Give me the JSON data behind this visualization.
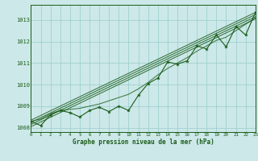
{
  "title": "Graphe pression niveau de la mer (hPa)",
  "x_labels": [
    "0",
    "1",
    "2",
    "3",
    "4",
    "5",
    "6",
    "7",
    "8",
    "9",
    "10",
    "11",
    "12",
    "13",
    "14",
    "15",
    "16",
    "17",
    "18",
    "19",
    "20",
    "21",
    "22",
    "23"
  ],
  "ylim": [
    1007.8,
    1013.7
  ],
  "yticks": [
    1008,
    1009,
    1010,
    1011,
    1012,
    1013
  ],
  "xlim": [
    0,
    23
  ],
  "bg_color": "#cce8e8",
  "grid_color": "#99cccc",
  "line_color": "#1a5c1a",
  "pressure_data": [
    1008.3,
    1008.1,
    1008.6,
    1008.8,
    1008.7,
    1008.5,
    1008.8,
    1008.95,
    1008.75,
    1009.0,
    1008.8,
    1009.5,
    1010.05,
    1010.3,
    1011.05,
    1010.95,
    1011.1,
    1011.8,
    1011.65,
    1012.3,
    1011.75,
    1012.7,
    1012.3,
    1013.35
  ],
  "smooth_data": [
    1008.3,
    1008.4,
    1008.65,
    1008.8,
    1008.85,
    1008.9,
    1009.0,
    1009.1,
    1009.25,
    1009.4,
    1009.55,
    1009.8,
    1010.1,
    1010.45,
    1010.75,
    1011.0,
    1011.25,
    1011.55,
    1011.8,
    1012.05,
    1012.2,
    1012.5,
    1012.8,
    1013.1
  ],
  "trend_lines": [
    [
      1008.15,
      1013.15
    ],
    [
      1008.25,
      1013.25
    ],
    [
      1008.35,
      1013.35
    ],
    [
      1008.05,
      1013.05
    ]
  ],
  "figsize": [
    3.2,
    2.0
  ],
  "dpi": 100
}
